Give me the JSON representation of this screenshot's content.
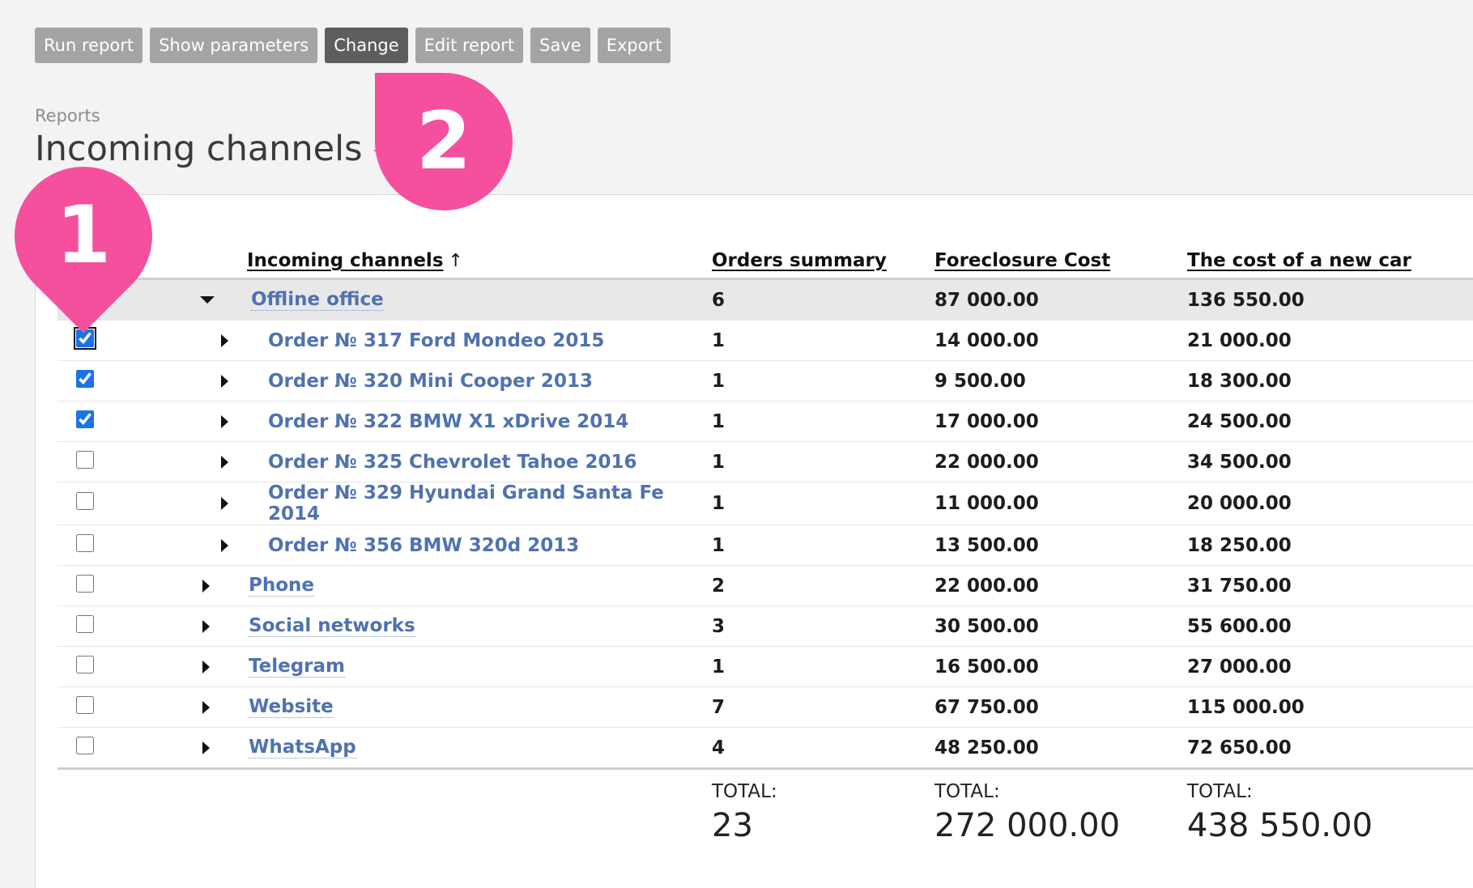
{
  "toolbar": {
    "buttons": [
      "Run report",
      "Show parameters",
      "Change",
      "Edit report",
      "Save",
      "Export"
    ],
    "active": "Change"
  },
  "header": {
    "breadcrumb": "Reports",
    "title": "Incoming channels"
  },
  "table": {
    "columns": {
      "name": "Incoming channels",
      "sort_arrow": "↑",
      "orders": "Orders summary",
      "foreclosure": "Foreclosure Cost",
      "newcar": "The cost of a new car"
    },
    "rows": [
      {
        "level": 0,
        "expanded": true,
        "checkbox": false,
        "name": "Offline office",
        "orders": "6",
        "foreclosure": "87 000.00",
        "newcar": "136 550.00"
      },
      {
        "level": 1,
        "checked": true,
        "focused": true,
        "name": "Order № 317 Ford Mondeo 2015",
        "orders": "1",
        "foreclosure": "14 000.00",
        "newcar": "21 000.00"
      },
      {
        "level": 1,
        "checked": true,
        "name": "Order № 320 Mini Cooper 2013",
        "orders": "1",
        "foreclosure": "9 500.00",
        "newcar": "18 300.00"
      },
      {
        "level": 1,
        "checked": true,
        "name": "Order № 322 BMW X1 xDrive 2014",
        "orders": "1",
        "foreclosure": "17 000.00",
        "newcar": "24 500.00"
      },
      {
        "level": 1,
        "checked": false,
        "name": "Order № 325 Chevrolet Tahoe 2016",
        "orders": "1",
        "foreclosure": "22 000.00",
        "newcar": "34 500.00"
      },
      {
        "level": 1,
        "checked": false,
        "name": "Order № 329 Hyundai Grand Santa Fe 2014",
        "orders": "1",
        "foreclosure": "11 000.00",
        "newcar": "20 000.00"
      },
      {
        "level": 1,
        "checked": false,
        "name": "Order № 356 BMW 320d 2013",
        "orders": "1",
        "foreclosure": "13 500.00",
        "newcar": "18 250.00"
      },
      {
        "level": 0,
        "checked": false,
        "name": "Phone",
        "orders": "2",
        "foreclosure": "22 000.00",
        "newcar": "31 750.00"
      },
      {
        "level": 0,
        "checked": false,
        "name": "Social networks",
        "orders": "3",
        "foreclosure": "30 500.00",
        "newcar": "55 600.00"
      },
      {
        "level": 0,
        "checked": false,
        "name": "Telegram",
        "orders": "1",
        "foreclosure": "16 500.00",
        "newcar": "27 000.00"
      },
      {
        "level": 0,
        "checked": false,
        "name": "Website",
        "orders": "7",
        "foreclosure": "67 750.00",
        "newcar": "115 000.00"
      },
      {
        "level": 0,
        "checked": false,
        "name": "WhatsApp",
        "orders": "4",
        "foreclosure": "48 250.00",
        "newcar": "72 650.00"
      }
    ],
    "totals": {
      "label": "TOTAL:",
      "orders": "23",
      "foreclosure": "272 000.00",
      "newcar": "438 550.00"
    }
  },
  "callouts": [
    "1",
    "2"
  ],
  "colors": {
    "callout": "#f4509e",
    "link": "#4f72b0",
    "active_button": "#5e5e5e",
    "button": "#a4a4a4",
    "title_caret": "#f08c1e"
  }
}
